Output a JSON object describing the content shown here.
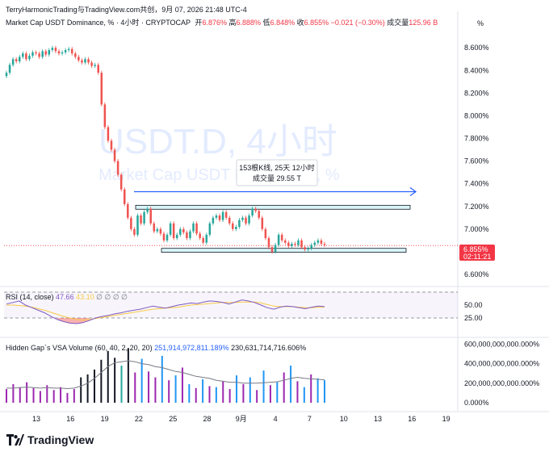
{
  "attribution": "TerryHarmonicTrading与TradingView.com共创，9月 07, 2026 21:48 UTC-4",
  "header": {
    "symbol": "Market Cap USDT Dominance, % · 4小时 · CRYPTOCAP",
    "open_label": "开",
    "open": "6.876%",
    "high_label": "高",
    "high": "6.888%",
    "low_label": "低",
    "low": "6.848%",
    "close_label": "收",
    "close": "6.855%",
    "change": "−0.021 (−0.30%)",
    "volume_label": "成交量",
    "volume": "125.96 B"
  },
  "scale_unit": "%",
  "watermark": {
    "title": "USDT.D, 4小时",
    "subtitle": "Market Cap USDT Dominance, %"
  },
  "measure_tooltip": {
    "line1": "153根K线, 25天 12小时",
    "line2": "成交量 29.55 T"
  },
  "price_badge": {
    "value": "6.855%",
    "countdown": "02:11:21"
  },
  "rsi": {
    "label": "RSI (14, close)",
    "value1": "47.66",
    "value2": "43.10",
    "placeholders": "∅ ∅ ∅ ∅",
    "levels": [
      50,
      25
    ]
  },
  "vsa": {
    "label": "Hidden Gap`s VSA Volume (60, 40, 2, 20, 20)",
    "value1": "251,914,972,811.189%",
    "value2": "230,631,714,716.606%"
  },
  "logo_text": "TradingView",
  "colors": {
    "up": "#26a69a",
    "down": "#ef5350",
    "zone_fill": "#b2ebf2",
    "arrow": "#2962ff",
    "rsi_line": "#7e57c2",
    "rsi_ma": "#f7c948",
    "badge": "#f23645"
  },
  "chart_data": [
    {
      "type": "candlestick",
      "title": "Market Cap USDT Dominance, % · 4小时 · CRYPTOCAP",
      "ylabel": "%",
      "ylim": [
        6.55,
        8.68
      ],
      "y_ticks": [
        "8.600%",
        "8.400%",
        "8.200%",
        "8.000%",
        "7.800%",
        "7.600%",
        "7.400%",
        "7.200%",
        "7.000%",
        "6.800%",
        "6.600%"
      ],
      "x_ticks": [
        "13",
        "16",
        "19",
        "22",
        "25",
        "28",
        "9月",
        "4",
        "7",
        "10",
        "13",
        "16",
        "19"
      ],
      "closes": [
        8.38,
        8.45,
        8.5,
        8.48,
        8.52,
        8.55,
        8.5,
        8.53,
        8.56,
        8.55,
        8.52,
        8.57,
        8.54,
        8.58,
        8.6,
        8.57,
        8.55,
        8.56,
        8.58,
        8.59,
        8.55,
        8.52,
        8.49,
        8.47,
        8.5,
        8.47,
        8.44,
        8.45,
        8.38,
        8.1,
        7.9,
        7.78,
        7.7,
        7.6,
        7.48,
        7.35,
        7.22,
        7.1,
        7.0,
        6.95,
        7.12,
        7.05,
        7.15,
        7.18,
        7.05,
        6.98,
        7.0,
        6.96,
        6.9,
        6.95,
        7.05,
        6.92,
        6.95,
        7.0,
        6.97,
        6.92,
        6.98,
        7.05,
        6.96,
        6.92,
        6.88,
        6.95,
        7.05,
        7.1,
        7.12,
        7.08,
        7.15,
        7.1,
        7.05,
        7.0,
        7.02,
        7.08,
        7.1,
        7.05,
        7.12,
        7.18,
        7.16,
        7.1,
        7.0,
        6.92,
        6.84,
        6.8,
        6.86,
        6.95,
        6.9,
        6.88,
        6.85,
        6.87,
        6.86,
        6.9,
        6.84,
        6.82,
        6.83,
        6.86,
        6.88,
        6.9,
        6.87,
        6.86
      ],
      "zones": [
        {
          "name": "resistance",
          "from": 7.175,
          "to": 7.21
        },
        {
          "name": "support",
          "from": 6.795,
          "to": 6.83
        }
      ],
      "arrow_level": 7.33,
      "last_price": 6.855
    },
    {
      "type": "line",
      "title": "RSI (14, close)",
      "ylim": [
        0,
        100
      ],
      "y_ticks": [
        "50.00",
        "25.00"
      ],
      "series": [
        {
          "name": "RSI",
          "values": [
            52,
            55,
            58,
            50,
            45,
            40,
            35,
            28,
            22,
            18,
            15,
            14,
            16,
            20,
            25,
            28,
            30,
            33,
            35,
            38,
            40,
            42,
            45,
            48,
            46,
            44,
            47,
            50,
            52,
            54,
            53,
            56,
            58,
            57,
            55,
            52,
            56,
            60,
            58,
            55,
            50,
            45,
            42,
            46,
            48,
            47,
            45,
            43,
            46,
            48,
            47
          ]
        },
        {
          "name": "MA",
          "values": [
            50,
            50,
            49,
            48,
            46,
            43,
            40,
            36,
            32,
            28,
            25,
            22,
            21,
            22,
            24,
            26,
            28,
            30,
            32,
            34,
            36,
            38,
            40,
            42,
            43,
            44,
            45,
            46,
            48,
            50,
            51,
            52,
            53,
            54,
            55,
            55,
            55,
            56,
            56,
            56,
            54,
            51,
            48,
            47,
            47,
            47,
            46,
            45,
            45,
            46,
            46
          ]
        }
      ]
    },
    {
      "type": "bar",
      "title": "Hidden Gap`s VSA Volume (60, 40, 2, 20, 20)",
      "ylim": [
        0,
        620000000000
      ],
      "y_ticks": [
        "600,000,000,000.000%",
        "400,000,000,000.000%",
        "200,000,000,000.000%",
        "0.000%"
      ],
      "values": [
        140000000000.0,
        190000000000.0,
        160000000000.0,
        210000000000.0,
        150000000000.0,
        120000000000.0,
        180000000000.0,
        130000000000.0,
        160000000000.0,
        100000000000.0,
        140000000000.0,
        260000000000.0,
        290000000000.0,
        340000000000.0,
        440000000000.0,
        530000000000.0,
        460000000000.0,
        380000000000.0,
        560000000000.0,
        310000000000.0,
        450000000000.0,
        320000000000.0,
        260000000000.0,
        480000000000.0,
        230000000000.0,
        280000000000.0,
        360000000000.0,
        190000000000.0,
        150000000000.0,
        240000000000.0,
        170000000000.0,
        160000000000.0,
        220000000000.0,
        140000000000.0,
        280000000000.0,
        190000000000.0,
        260000000000.0,
        130000000000.0,
        330000000000.0,
        180000000000.0,
        210000000000.0,
        310000000000.0,
        380000000000.0,
        220000000000.0,
        160000000000.0,
        290000000000.0,
        250000000000.0,
        230000000000.0
      ],
      "colors": [
        "#9c27b0",
        "#9c27b0",
        "#9c27b0",
        "#9c27b0",
        "#9c27b0",
        "#9c27b0",
        "#9c27b0",
        "#9c27b0",
        "#9c27b0",
        "#9c27b0",
        "#9c27b0",
        "#131722",
        "#131722",
        "#131722",
        "#131722",
        "#131722",
        "#131722",
        "#26a69a",
        "#131722",
        "#9c27b0",
        "#2196f3",
        "#9c27b0",
        "#9c27b0",
        "#2196f3",
        "#9c27b0",
        "#2196f3",
        "#9c27b0",
        "#2196f3",
        "#9c27b0",
        "#2196f3",
        "#9c27b0",
        "#2196f3",
        "#9c27b0",
        "#9c27b0",
        "#2196f3",
        "#9c27b0",
        "#2196f3",
        "#9c27b0",
        "#2196f3",
        "#9c27b0",
        "#2196f3",
        "#9c27b0",
        "#2196f3",
        "#9c27b0",
        "#2196f3",
        "#9c27b0",
        "#2196f3",
        "#2196f3"
      ],
      "ma": [
        150000000000.0,
        150000000000.0,
        155000000000.0,
        160000000000.0,
        155000000000.0,
        150000000000.0,
        155000000000.0,
        150000000000.0,
        150000000000.0,
        145000000000.0,
        150000000000.0,
        170000000000.0,
        200000000000.0,
        250000000000.0,
        310000000000.0,
        370000000000.0,
        410000000000.0,
        420000000000.0,
        430000000000.0,
        420000000000.0,
        400000000000.0,
        390000000000.0,
        370000000000.0,
        360000000000.0,
        340000000000.0,
        320000000000.0,
        310000000000.0,
        290000000000.0,
        270000000000.0,
        260000000000.0,
        250000000000.0,
        230000000000.0,
        220000000000.0,
        210000000000.0,
        210000000000.0,
        200000000000.0,
        200000000000.0,
        200000000000.0,
        205000000000.0,
        210000000000.0,
        215000000000.0,
        230000000000.0,
        250000000000.0,
        260000000000.0,
        250000000000.0,
        245000000000.0,
        240000000000.0,
        235000000000.0
      ]
    }
  ]
}
